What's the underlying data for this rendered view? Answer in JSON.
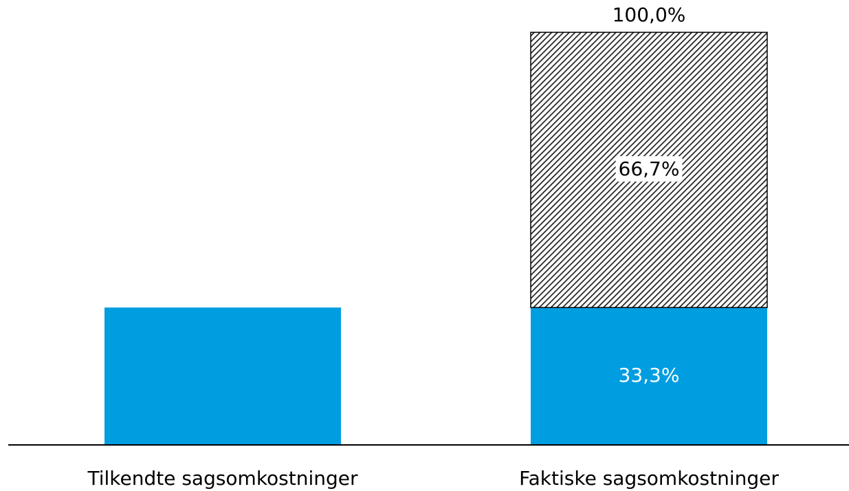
{
  "chart_data": {
    "type": "stacked_bar",
    "categories": [
      "Tilkendte sagsomkostninger",
      "Faktiske sagsomkostninger"
    ],
    "series": [
      {
        "color": "#009de0",
        "values": [
          33.3,
          33.3
        ],
        "value_labels": [
          null,
          "33,3%"
        ],
        "label_color": "#ffffff"
      },
      {
        "color": "#000000",
        "pattern": "hatch",
        "values": [
          null,
          66.7
        ],
        "value_labels": [
          null,
          "66,7%"
        ],
        "label_color": "#000000"
      }
    ],
    "totals": [
      null,
      100
    ],
    "total_labels": [
      null,
      "100,0%"
    ],
    "ylim": [
      0,
      100
    ]
  }
}
